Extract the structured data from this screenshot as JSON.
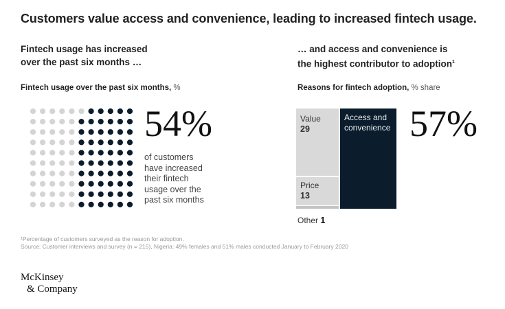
{
  "title": "Customers value access and convenience, leading to increased fintech usage.",
  "left_panel": {
    "subtitle_line1": "Fintech usage has increased",
    "subtitle_line2": "over the past six months …",
    "chart_label": "Fintech usage over the past six months,",
    "chart_unit": "%",
    "big_number": "54%",
    "description_lines": [
      "of customers",
      "have increased",
      "their fintech",
      "usage over the",
      "past six months"
    ]
  },
  "right_panel": {
    "subtitle_line1": "… and access and convenience is",
    "subtitle_line2": "the highest contributor to adoption",
    "subtitle_footnote_mark": "1",
    "chart_label": "Reasons for fintech adoption,",
    "chart_unit": "% share",
    "big_number": "57%"
  },
  "colors": {
    "dark_navy": "#0b1c2c",
    "light_gray": "#d9d9d9",
    "dot_gray": "#d4d4d4"
  },
  "chart_data": [
    {
      "type": "dot_matrix",
      "title": "Fintech usage over the past six months, %",
      "rows": 10,
      "columns": 11,
      "values": [
        {
          "label": "increased",
          "value": 54
        }
      ],
      "filled_fraction": 0.54
    },
    {
      "type": "bar",
      "title": "Reasons for fintech adoption, % share",
      "categories": [
        "Value",
        "Price",
        "Other",
        "Access and convenience"
      ],
      "values": [
        29,
        13,
        1,
        57
      ]
    }
  ],
  "value_segment": {
    "label": "Value",
    "value": "29"
  },
  "price_segment": {
    "label": "Price",
    "value": "13"
  },
  "other_segment": {
    "label": "Other",
    "value": "1"
  },
  "access_segment": {
    "label_line1": "Access and",
    "label_line2": "convenience"
  },
  "footnotes": {
    "note1": "¹Percentage of customers surveyed as the reason for adoption.",
    "source": "Source: Customer interviews and survey (n = 215), Nigeria: 49% females and 51% males conducted January to February 2020"
  },
  "logo": {
    "line1": "McKinsey",
    "line2": "& Company"
  }
}
